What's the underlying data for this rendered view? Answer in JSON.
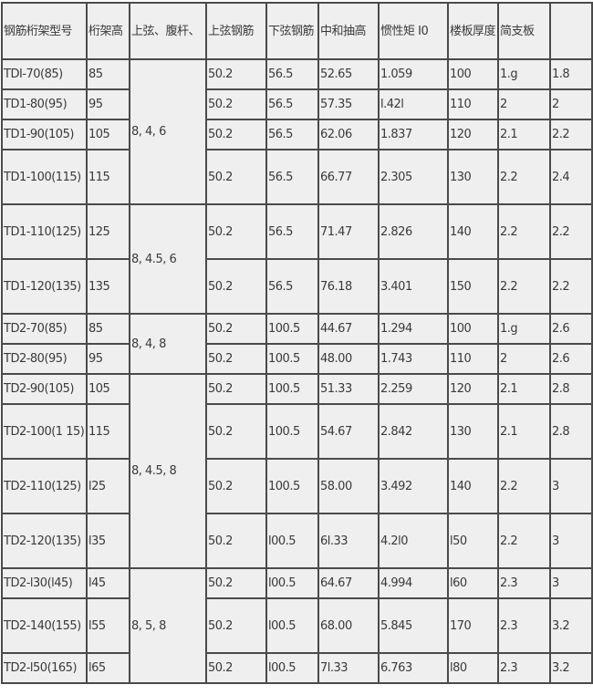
{
  "headers": [
    "钢筋桁架型号",
    "桁架高",
    "上弦、腹杆、",
    "上弦钢筋",
    "下弦钢筋",
    "中和抽高",
    "惯性矩 I0",
    "楼板厚度",
    "简支板",
    ""
  ],
  "groups": [
    {
      "label": "8, 4, 6",
      "span": 4
    },
    {
      "label": "8, 4.5, 6",
      "span": 2
    },
    {
      "label": "8, 4, 8",
      "span": 2
    },
    {
      "label": "8, 4.5, 8",
      "span": 4
    },
    {
      "label": "8, 5, 8",
      "span": 3
    }
  ],
  "rows": [
    {
      "tall": false,
      "cells": [
        "TDI-70(85)",
        "85",
        "50.2",
        "56.5",
        "52.65",
        "1.059",
        "100",
        "1.g",
        "1.8"
      ]
    },
    {
      "tall": false,
      "cells": [
        "TD1-80(95)",
        "95",
        "50.2",
        "56.5",
        "57.35",
        "l.42l",
        "110",
        "2",
        "2"
      ]
    },
    {
      "tall": false,
      "cells": [
        "TD1-90(105)",
        "105",
        "50.2",
        "56.5",
        "62.06",
        "1.837",
        "120",
        "2.1",
        "2.2"
      ]
    },
    {
      "tall": true,
      "cells": [
        "TD1-100(115)",
        "115",
        "50.2",
        "56.5",
        "66.77",
        "2.305",
        "130",
        "2.2",
        "2.4"
      ]
    },
    {
      "tall": true,
      "cells": [
        "TD1-110(125)",
        "125",
        "50.2",
        "56.5",
        "71.47",
        "2.826",
        "140",
        "2.2",
        "2.2"
      ]
    },
    {
      "tall": true,
      "cells": [
        "TD1-120(135)",
        "135",
        "50.2",
        "56.5",
        "76.18",
        "3.401",
        "150",
        "2.2",
        "2.2"
      ]
    },
    {
      "tall": false,
      "cells": [
        "TD2-70(85)",
        "85",
        "50.2",
        "100.5",
        "44.67",
        "1.294",
        "100",
        "1.g",
        "2.6"
      ]
    },
    {
      "tall": false,
      "cells": [
        "TD2-80(95)",
        "95",
        "50.2",
        "100.5",
        "48.00",
        "1.743",
        "110",
        "2",
        "2.6"
      ]
    },
    {
      "tall": false,
      "cells": [
        "TD2-90(105)",
        "105",
        "50.2",
        "100.5",
        "51.33",
        "2.259",
        "120",
        "2.1",
        "2.8"
      ]
    },
    {
      "tall": true,
      "cells": [
        "TD2-100(1 15)",
        "115",
        "50.2",
        "100.5",
        "54.67",
        "2.842",
        "130",
        "2.1",
        "2.8"
      ]
    },
    {
      "tall": true,
      "cells": [
        "TD2-110(125)",
        "l25",
        "50.2",
        "100.5",
        "58.00",
        "3.492",
        "140",
        "2.2",
        "3"
      ]
    },
    {
      "tall": true,
      "cells": [
        "TD2-120(135)",
        "l35",
        "50.2",
        "l00.5",
        "6l.33",
        "4.2l0",
        "l50",
        "2.2",
        "3"
      ]
    },
    {
      "tall": false,
      "cells": [
        "TD2-l30(l45)",
        "l45",
        "50.2",
        "l00.5",
        "64.67",
        "4.994",
        "l60",
        "2.3",
        "3"
      ]
    },
    {
      "tall": true,
      "cells": [
        "TD2-140(155)",
        "l55",
        "50.2",
        "l00.5",
        "68.00",
        "5.845",
        "170",
        "2.3",
        "3.2"
      ]
    },
    {
      "tall": false,
      "cells": [
        "TD2-l50(165)",
        "l65",
        "50.2",
        "l00.5",
        "7l.33",
        "6.763",
        "l80",
        "2.3",
        "3.2"
      ]
    }
  ]
}
